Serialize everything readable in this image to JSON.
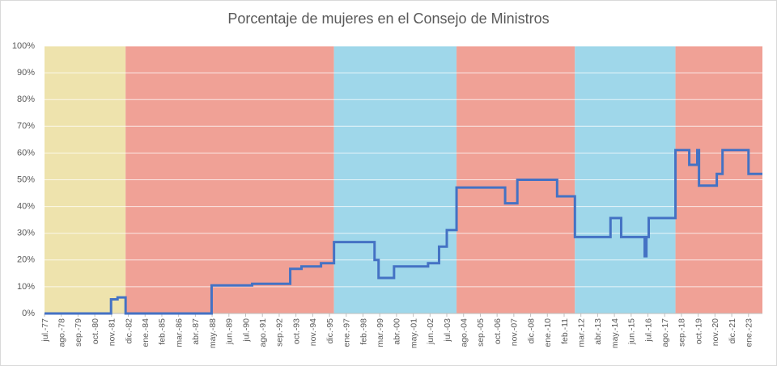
{
  "chart_data": {
    "type": "line",
    "title": "Porcentaje de mujeres en el Consejo de Ministros",
    "xlim": [
      1977.5,
      2023.9
    ],
    "ylim": [
      0,
      100
    ],
    "yticks": [
      {
        "value": 0,
        "label": "0%"
      },
      {
        "value": 10,
        "label": "10%"
      },
      {
        "value": 20,
        "label": "20%"
      },
      {
        "value": 30,
        "label": "30%"
      },
      {
        "value": 40,
        "label": "40%"
      },
      {
        "value": 50,
        "label": "50%"
      },
      {
        "value": 60,
        "label": "60%"
      },
      {
        "value": 70,
        "label": "70%"
      },
      {
        "value": 80,
        "label": "80%"
      },
      {
        "value": 90,
        "label": "90%"
      },
      {
        "value": 100,
        "label": "100%"
      }
    ],
    "xticks": [
      {
        "value": 1977.5,
        "label": "jul.-77"
      },
      {
        "value": 1978.583,
        "label": "ago.-78"
      },
      {
        "value": 1979.667,
        "label": "sep.-79"
      },
      {
        "value": 1980.75,
        "label": "oct.-80"
      },
      {
        "value": 1981.833,
        "label": "nov.-81"
      },
      {
        "value": 1982.917,
        "label": "dic.-82"
      },
      {
        "value": 1984.0,
        "label": "ene.-84"
      },
      {
        "value": 1985.083,
        "label": "feb.-85"
      },
      {
        "value": 1986.167,
        "label": "mar.-86"
      },
      {
        "value": 1987.25,
        "label": "abr.-87"
      },
      {
        "value": 1988.333,
        "label": "may.-88"
      },
      {
        "value": 1989.417,
        "label": "jun.-89"
      },
      {
        "value": 1990.5,
        "label": "jul.-90"
      },
      {
        "value": 1991.583,
        "label": "ago.-91"
      },
      {
        "value": 1992.667,
        "label": "sep.-92"
      },
      {
        "value": 1993.75,
        "label": "oct.-93"
      },
      {
        "value": 1994.833,
        "label": "nov.-94"
      },
      {
        "value": 1995.917,
        "label": "dic.-95"
      },
      {
        "value": 1997.0,
        "label": "ene.-97"
      },
      {
        "value": 1998.083,
        "label": "feb.-98"
      },
      {
        "value": 1999.167,
        "label": "mar.-99"
      },
      {
        "value": 2000.25,
        "label": "abr.-00"
      },
      {
        "value": 2001.333,
        "label": "may.-01"
      },
      {
        "value": 2002.417,
        "label": "jun.-02"
      },
      {
        "value": 2003.5,
        "label": "jul.-03"
      },
      {
        "value": 2004.583,
        "label": "ago.-04"
      },
      {
        "value": 2005.667,
        "label": "sep.-05"
      },
      {
        "value": 2006.75,
        "label": "oct.-06"
      },
      {
        "value": 2007.833,
        "label": "nov.-07"
      },
      {
        "value": 2008.917,
        "label": "dic.-08"
      },
      {
        "value": 2010.0,
        "label": "ene.-10"
      },
      {
        "value": 2011.083,
        "label": "feb.-11"
      },
      {
        "value": 2012.167,
        "label": "mar.-12"
      },
      {
        "value": 2013.25,
        "label": "abr.-13"
      },
      {
        "value": 2014.333,
        "label": "may.-14"
      },
      {
        "value": 2015.417,
        "label": "jun.-15"
      },
      {
        "value": 2016.5,
        "label": "jul.-16"
      },
      {
        "value": 2017.583,
        "label": "ago.-17"
      },
      {
        "value": 2018.667,
        "label": "sep.-18"
      },
      {
        "value": 2019.75,
        "label": "oct.-19"
      },
      {
        "value": 2020.833,
        "label": "nov.-20"
      },
      {
        "value": 2021.917,
        "label": "dic.-21"
      },
      {
        "value": 2023.0,
        "label": "ene.-23"
      }
    ],
    "grid": true,
    "bands": [
      {
        "start": 1977.5,
        "end": 1982.74,
        "color": "#eee3ad"
      },
      {
        "start": 1982.74,
        "end": 1996.21,
        "color": "#f0a196"
      },
      {
        "start": 1996.21,
        "end": 2004.13,
        "color": "#9fd7ea"
      },
      {
        "start": 2004.13,
        "end": 2011.78,
        "color": "#f0a196"
      },
      {
        "start": 2011.78,
        "end": 2018.28,
        "color": "#9fd7ea"
      },
      {
        "start": 2018.28,
        "end": 2023.9,
        "color": "#f0a196"
      }
    ],
    "series": [
      {
        "color": "#4472c4",
        "x": [
          1977.5,
          1981.8,
          1981.8,
          1982.22,
          1982.22,
          1982.74,
          1982.74,
          1988.3,
          1988.3,
          1990.92,
          1990.92,
          1993.38,
          1993.38,
          1994.11,
          1994.11,
          1995.37,
          1995.37,
          1996.21,
          1996.21,
          1998.83,
          1998.83,
          1999.09,
          1999.09,
          2000.09,
          2000.09,
          2002.29,
          2002.29,
          2003.0,
          2003.0,
          2003.5,
          2003.5,
          2004.13,
          2004.13,
          2007.27,
          2007.27,
          2008.06,
          2008.06,
          2010.63,
          2010.63,
          2011.78,
          2011.78,
          2014.08,
          2014.08,
          2014.77,
          2014.77,
          2016.29,
          2016.29,
          2016.4,
          2016.4,
          2016.55,
          2016.55,
          2018.28,
          2018.28,
          2019.17,
          2019.17,
          2019.69,
          2019.69,
          2019.8,
          2019.8,
          2020.95,
          2020.95,
          2021.32,
          2021.32,
          2023.0,
          2023.0,
          2023.9
        ],
        "values": [
          0,
          0,
          5.3,
          5.3,
          6,
          6,
          0,
          0,
          10.5,
          10.5,
          11.1,
          11.1,
          16.7,
          16.7,
          17.6,
          17.6,
          18.8,
          18.8,
          26.7,
          26.7,
          20,
          20,
          13.3,
          13.3,
          17.6,
          17.6,
          18.8,
          18.8,
          25,
          25,
          31.2,
          31.2,
          47.1,
          47.1,
          41.2,
          41.2,
          50,
          50,
          43.8,
          43.8,
          28.6,
          28.6,
          35.7,
          35.7,
          28.6,
          28.6,
          21.4,
          21.4,
          28.6,
          28.6,
          35.7,
          35.7,
          61.1,
          61.1,
          55.6,
          55.6,
          61.1,
          61.1,
          47.8,
          47.8,
          52.2,
          52.2,
          61.1,
          61.1,
          52.2,
          52.2
        ]
      }
    ]
  }
}
